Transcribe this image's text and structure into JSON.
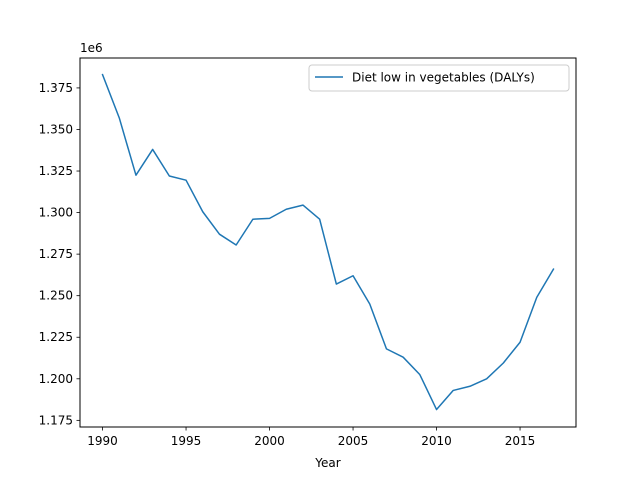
{
  "chart_data": {
    "type": "line",
    "title": "",
    "xlabel": "Year",
    "ylabel": "",
    "offset_text": "1e6",
    "xlim": [
      1988.65,
      2018.35
    ],
    "ylim": [
      1171000,
      1393000
    ],
    "x_ticks": [
      1990,
      1995,
      2000,
      2005,
      2010,
      2015
    ],
    "y_ticks": [
      1175000,
      1200000,
      1225000,
      1250000,
      1275000,
      1300000,
      1325000,
      1350000,
      1375000
    ],
    "y_tick_labels": [
      "1.175",
      "1.200",
      "1.225",
      "1.250",
      "1.275",
      "1.300",
      "1.325",
      "1.350",
      "1.375"
    ],
    "grid": false,
    "legend_position": "upper-right",
    "series": [
      {
        "name": "Diet low in vegetables (DALYs)",
        "color": "#1f77b4",
        "x": [
          1990,
          1991,
          1992,
          1993,
          1994,
          1995,
          1996,
          1997,
          1998,
          1999,
          2000,
          2001,
          2002,
          2003,
          2004,
          2005,
          2006,
          2007,
          2008,
          2009,
          2010,
          2011,
          2012,
          2013,
          2014,
          2015,
          2016,
          2017
        ],
        "values": [
          1383000,
          1357000,
          1322500,
          1338000,
          1322000,
          1319500,
          1300500,
          1287000,
          1280500,
          1296000,
          1296500,
          1302000,
          1304500,
          1296000,
          1257000,
          1262000,
          1245000,
          1218000,
          1213000,
          1202500,
          1181500,
          1193000,
          1195500,
          1200000,
          1209500,
          1222000,
          1249000,
          1266000
        ]
      }
    ]
  }
}
